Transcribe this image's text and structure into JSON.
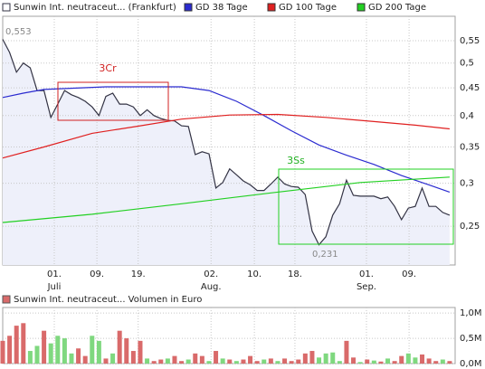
{
  "chart_data": [
    {
      "type": "line",
      "log_scale": true,
      "grid": true,
      "xlim": [
        0,
        65.8
      ],
      "ylim": [
        0.212,
        0.61
      ],
      "yticks": [
        {
          "value": 0.25,
          "label": "0,25"
        },
        {
          "value": 0.3,
          "label": "0,3"
        },
        {
          "value": 0.35,
          "label": "0,35"
        },
        {
          "value": 0.4,
          "label": "0,4"
        },
        {
          "value": 0.45,
          "label": "0,45"
        },
        {
          "value": 0.5,
          "label": "0,5"
        },
        {
          "value": 0.55,
          "label": "0,55"
        }
      ],
      "xticks": [
        {
          "value": 7.5,
          "label": "01."
        },
        {
          "value": 13.7,
          "label": "09."
        },
        {
          "value": 19.7,
          "label": "19."
        },
        {
          "value": 30.3,
          "label": "02."
        },
        {
          "value": 36.6,
          "label": "10."
        },
        {
          "value": 42.5,
          "label": "18."
        },
        {
          "value": 52.9,
          "label": "01."
        },
        {
          "value": 59.1,
          "label": "09."
        }
      ],
      "month_labels": [
        {
          "value": 7.5,
          "label": "Juli"
        },
        {
          "value": 30.3,
          "label": "Aug."
        },
        {
          "value": 52.9,
          "label": "Sep."
        }
      ],
      "annotations": [
        "3Cr",
        "3Ss",
        "0,553",
        "0,231"
      ],
      "series": [
        {
          "name": "Sunwin Int. neutraceut... (Frankfurt)",
          "color": "#333344",
          "area_color": "#eef0fa",
          "x": [
            0,
            1,
            2,
            3,
            4,
            5,
            6,
            7,
            8,
            9,
            10,
            11,
            12,
            13,
            14,
            15,
            16,
            17,
            18,
            19,
            20,
            21,
            22,
            23,
            24,
            25,
            26,
            27,
            28,
            29,
            30,
            31,
            32,
            33,
            34,
            35,
            36,
            37,
            38,
            39,
            40,
            41,
            42,
            43,
            44,
            45,
            46,
            47,
            48,
            49,
            50,
            51,
            52,
            53,
            54,
            55,
            56,
            57,
            58,
            59,
            60,
            61,
            62,
            63,
            64,
            65
          ],
          "values": [
            0.553,
            0.523,
            0.481,
            0.5,
            0.49,
            0.445,
            0.445,
            0.397,
            0.42,
            0.445,
            0.437,
            0.432,
            0.425,
            0.415,
            0.4,
            0.434,
            0.44,
            0.42,
            0.42,
            0.415,
            0.4,
            0.41,
            0.4,
            0.395,
            0.392,
            0.391,
            0.383,
            0.382,
            0.339,
            0.343,
            0.34,
            0.294,
            0.301,
            0.319,
            0.311,
            0.303,
            0.298,
            0.291,
            0.291,
            0.299,
            0.308,
            0.299,
            0.296,
            0.295,
            0.286,
            0.245,
            0.231,
            0.239,
            0.262,
            0.275,
            0.304,
            0.285,
            0.284,
            0.284,
            0.284,
            0.281,
            0.283,
            0.272,
            0.257,
            0.27,
            0.272,
            0.294,
            0.272,
            0.272,
            0.265,
            0.262
          ]
        },
        {
          "name": "GD 38 Tage",
          "color": "#2b2bd0",
          "x": [
            0,
            3,
            6,
            15,
            26,
            30,
            34,
            38,
            42,
            46,
            50,
            54,
            58,
            62,
            65
          ],
          "values": [
            0.432,
            0.44,
            0.447,
            0.452,
            0.452,
            0.445,
            0.425,
            0.4,
            0.375,
            0.353,
            0.338,
            0.325,
            0.31,
            0.298,
            0.289
          ]
        },
        {
          "name": "GD 100 Tage",
          "color": "#e02020",
          "x": [
            0,
            6,
            13,
            20,
            26,
            33,
            40,
            47,
            54,
            60,
            65
          ],
          "values": [
            0.334,
            0.35,
            0.371,
            0.383,
            0.394,
            0.401,
            0.402,
            0.397,
            0.39,
            0.384,
            0.378
          ]
        },
        {
          "name": "GD 200 Tage",
          "color": "#22d022",
          "x": [
            0,
            13,
            26,
            39,
            52,
            65
          ],
          "values": [
            0.254,
            0.263,
            0.275,
            0.288,
            0.301,
            0.308
          ]
        }
      ]
    },
    {
      "type": "bar",
      "title": "Sunwin Int. neutraceut... Volumen in Euro",
      "title_color": "#d96a6a",
      "grid": true,
      "xlim": [
        0,
        65.8
      ],
      "ylim": [
        0,
        1110000
      ],
      "yticks": [
        {
          "value": 0,
          "label": "0,0M"
        },
        {
          "value": 500000,
          "label": "0,5M"
        },
        {
          "value": 1000000,
          "label": "1,0M"
        }
      ],
      "x": [
        0,
        1,
        2,
        3,
        4,
        5,
        6,
        7,
        8,
        9,
        10,
        11,
        12,
        13,
        14,
        15,
        16,
        17,
        18,
        19,
        20,
        21,
        22,
        23,
        24,
        25,
        26,
        27,
        28,
        29,
        30,
        31,
        32,
        33,
        34,
        35,
        36,
        37,
        38,
        39,
        40,
        41,
        42,
        43,
        44,
        45,
        46,
        47,
        48,
        49,
        50,
        51,
        52,
        53,
        54,
        55,
        56,
        57,
        58,
        59,
        60,
        61,
        62,
        63,
        64,
        65
      ],
      "values": [
        450000,
        550000,
        750000,
        800000,
        250000,
        350000,
        650000,
        400000,
        550000,
        500000,
        200000,
        300000,
        150000,
        550000,
        450000,
        100000,
        200000,
        650000,
        500000,
        250000,
        450000,
        100000,
        50000,
        80000,
        100000,
        150000,
        50000,
        80000,
        200000,
        150000,
        50000,
        250000,
        100000,
        80000,
        50000,
        80000,
        150000,
        50000,
        80000,
        100000,
        50000,
        100000,
        50000,
        80000,
        200000,
        250000,
        120000,
        200000,
        220000,
        50000,
        450000,
        120000,
        30000,
        80000,
        60000,
        40000,
        100000,
        50000,
        150000,
        200000,
        120000,
        180000,
        100000,
        50000,
        80000,
        50000
      ],
      "colors": [
        "#d96a6a",
        "#d96a6a",
        "#d96a6a",
        "#d96a6a",
        "#7fd87f",
        "#7fd87f",
        "#d96a6a",
        "#7fd87f",
        "#7fd87f",
        "#7fd87f",
        "#7fd87f",
        "#d96a6a",
        "#d96a6a",
        "#7fd87f",
        "#7fd87f",
        "#d96a6a",
        "#7fd87f",
        "#d96a6a",
        "#d96a6a",
        "#d96a6a",
        "#d96a6a",
        "#7fd87f",
        "#d96a6a",
        "#d96a6a",
        "#7fd87f",
        "#d96a6a",
        "#d96a6a",
        "#7fd87f",
        "#d96a6a",
        "#d96a6a",
        "#7fd87f",
        "#d96a6a",
        "#7fd87f",
        "#d96a6a",
        "#7fd87f",
        "#d96a6a",
        "#d96a6a",
        "#d96a6a",
        "#7fd87f",
        "#d96a6a",
        "#7fd87f",
        "#d96a6a",
        "#d96a6a",
        "#d96a6a",
        "#d96a6a",
        "#d96a6a",
        "#7fd87f",
        "#7fd87f",
        "#7fd87f",
        "#7fd87f",
        "#d96a6a",
        "#d96a6a",
        "#7fd87f",
        "#d96a6a",
        "#7fd87f",
        "#d96a6a",
        "#7fd87f",
        "#d96a6a",
        "#d96a6a",
        "#7fd87f",
        "#7fd87f",
        "#d96a6a",
        "#d96a6a",
        "#d96a6a",
        "#7fd87f",
        "#d96a6a"
      ]
    }
  ]
}
